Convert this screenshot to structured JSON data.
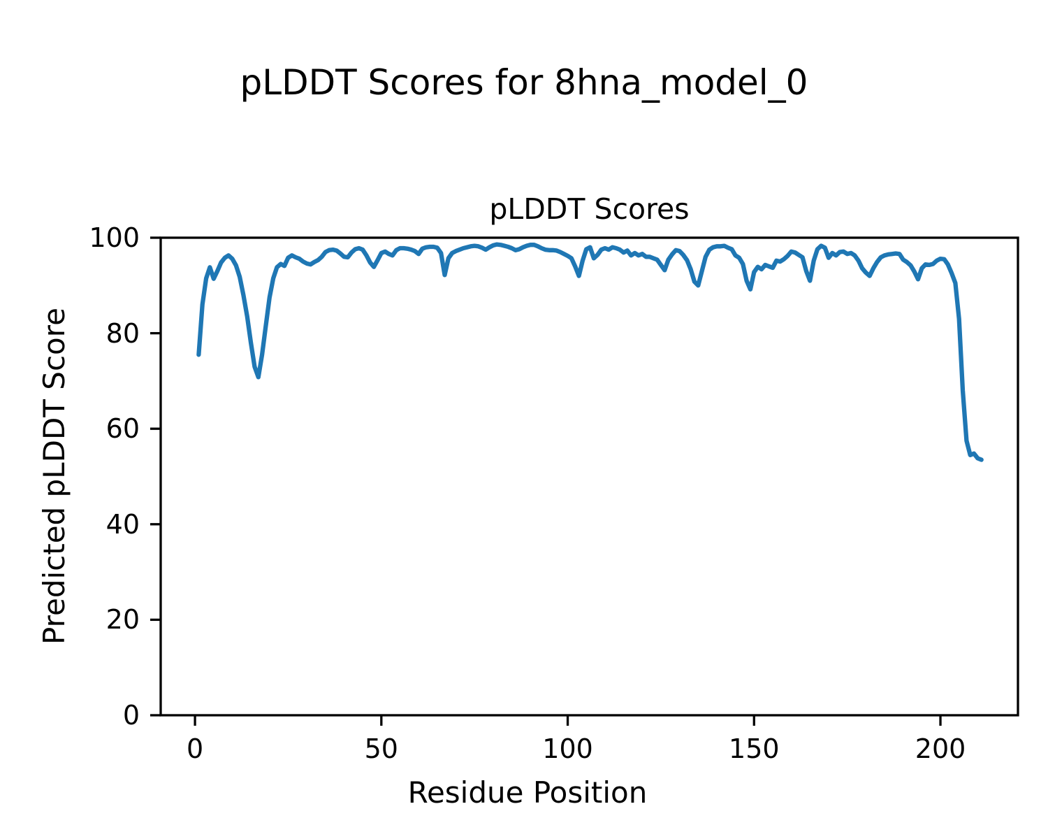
{
  "figure": {
    "suptitle": "pLDDT Scores for 8hna_model_0",
    "background": "#ffffff",
    "text_color": "#000000",
    "axes_frame_color": "#000000"
  },
  "chart_data": {
    "type": "line",
    "title": "pLDDT Scores",
    "xlabel": "Residue Position",
    "ylabel": "Predicted pLDDT Score",
    "xlim": [
      -9.2,
      220.8
    ],
    "ylim": [
      0,
      100
    ],
    "xticks": [
      0,
      50,
      100,
      150,
      200
    ],
    "yticks": [
      0,
      20,
      40,
      60,
      80,
      100
    ],
    "grid": false,
    "legend": "none",
    "series": [
      {
        "name": "pLDDT",
        "color": "#1f77b4",
        "x_start": 1,
        "values": [
          75.5,
          86.0,
          91.5,
          93.8,
          91.4,
          93.0,
          94.8,
          95.8,
          96.3,
          95.6,
          94.2,
          91.8,
          88.0,
          83.5,
          78.0,
          73.0,
          70.8,
          75.5,
          81.5,
          87.5,
          91.5,
          93.8,
          94.5,
          94.1,
          95.8,
          96.3,
          95.9,
          95.6,
          95.0,
          94.6,
          94.4,
          94.9,
          95.3,
          96.0,
          97.0,
          97.4,
          97.5,
          97.3,
          96.7,
          96.0,
          95.9,
          96.9,
          97.6,
          97.8,
          97.5,
          96.3,
          94.8,
          93.9,
          95.3,
          96.8,
          97.1,
          96.6,
          96.3,
          97.4,
          97.8,
          97.8,
          97.7,
          97.5,
          97.2,
          96.6,
          97.7,
          98.0,
          98.1,
          98.1,
          97.9,
          96.8,
          92.2,
          95.7,
          96.8,
          97.2,
          97.5,
          97.8,
          98.0,
          98.2,
          98.3,
          98.2,
          97.9,
          97.5,
          98.0,
          98.4,
          98.6,
          98.5,
          98.3,
          98.1,
          97.8,
          97.4,
          97.6,
          98.0,
          98.3,
          98.5,
          98.5,
          98.2,
          97.8,
          97.5,
          97.4,
          97.4,
          97.3,
          97.0,
          96.6,
          96.2,
          95.7,
          94.0,
          92.0,
          95.2,
          97.6,
          98.0,
          95.7,
          96.4,
          97.5,
          97.8,
          97.5,
          98.0,
          97.8,
          97.5,
          96.9,
          97.3,
          96.3,
          96.8,
          96.3,
          96.6,
          96.0,
          96.0,
          95.7,
          95.4,
          94.3,
          93.2,
          95.4,
          96.5,
          97.4,
          97.2,
          96.4,
          95.3,
          93.4,
          90.8,
          90.0,
          93.0,
          96.0,
          97.5,
          98.0,
          98.2,
          98.2,
          98.3,
          97.9,
          97.6,
          96.3,
          95.8,
          94.5,
          91.0,
          89.2,
          92.8,
          93.9,
          93.4,
          94.3,
          94.0,
          93.7,
          95.2,
          95.0,
          95.5,
          96.2,
          97.1,
          96.9,
          96.4,
          95.9,
          93.0,
          91.0,
          95.2,
          97.6,
          98.3,
          97.9,
          95.8,
          96.8,
          96.3,
          97.0,
          97.1,
          96.6,
          96.8,
          96.3,
          95.2,
          93.6,
          92.7,
          92.0,
          93.6,
          94.9,
          95.9,
          96.3,
          96.5,
          96.6,
          96.7,
          96.6,
          95.4,
          94.9,
          94.2,
          92.9,
          91.3,
          93.6,
          94.4,
          94.3,
          94.5,
          95.2,
          95.6,
          95.5,
          94.4,
          92.6,
          90.5,
          83.0,
          68.0,
          57.5,
          54.5,
          54.8,
          53.8,
          53.5
        ]
      }
    ]
  }
}
